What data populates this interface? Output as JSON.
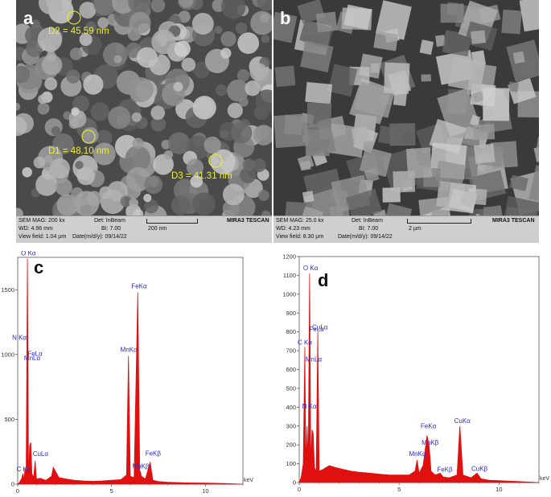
{
  "panels": {
    "a": {
      "letter": "a",
      "measurements": [
        "D2 = 45.59 nm",
        "D1 = 48.10 nm",
        "D3 = 41.31 nm"
      ],
      "infobar": {
        "sem_mag": "SEM MAG: 200 kx",
        "det": "Det: InBeam",
        "wd": "WD: 4.96 mm",
        "bi": "BI: 7.00",
        "scale": "200 nm",
        "view_field": "View field: 1.04 µm",
        "date": "Date(m/d/y): 09/14/22",
        "brand": "MIRA3 TESCAN"
      }
    },
    "b": {
      "letter": "b",
      "infobar": {
        "sem_mag": "SEM MAG: 25.0 kx",
        "det": "Det: InBeam",
        "wd": "WD: 4.23 mm",
        "bi": "BI: 7.00",
        "scale": "2 µm",
        "view_field": "View field: 8.30 µm",
        "date": "Date(m/d/y): 09/14/22",
        "brand": "MIRA3 TESCAN"
      }
    }
  },
  "chart_data": [
    {
      "type": "area",
      "panel": "c",
      "xlabel": "keV",
      "xlim": [
        0,
        12
      ],
      "ylim": [
        0,
        1750
      ],
      "x_ticks": [
        "0",
        "5",
        "10"
      ],
      "y_ticks": [
        "0",
        "500",
        "1000",
        "1500"
      ],
      "peaks": [
        {
          "label": "C Kα",
          "x": 0.28,
          "y": 80
        },
        {
          "label": "N Kα",
          "x": 0.39,
          "y": 680
        },
        {
          "label": "O Kα",
          "x": 0.52,
          "y": 1740
        },
        {
          "label": "FeLα",
          "x": 0.7,
          "y": 960
        },
        {
          "label": "MnLα",
          "x": 0.64,
          "y": 880
        },
        {
          "label": "CuLα",
          "x": 0.93,
          "y": 180
        },
        {
          "label": "MnKα",
          "x": 5.9,
          "y": 990
        },
        {
          "label": "FeKα",
          "x": 6.4,
          "y": 1480
        },
        {
          "label": "MnKβ",
          "x": 6.49,
          "y": 110
        },
        {
          "label": "FeKβ",
          "x": 7.06,
          "y": 170
        }
      ],
      "x": [
        0.0,
        0.1,
        0.2,
        0.28,
        0.33,
        0.39,
        0.45,
        0.52,
        0.58,
        0.64,
        0.7,
        0.76,
        0.85,
        0.93,
        1.0,
        1.2,
        1.5,
        1.8,
        1.9,
        2.2,
        2.6,
        3.0,
        3.5,
        4.0,
        4.5,
        5.0,
        5.5,
        5.8,
        5.9,
        6.0,
        6.2,
        6.4,
        6.5,
        6.6,
        6.8,
        7.06,
        7.2,
        7.5,
        8.0,
        9.0,
        10.0,
        11.0,
        12.0
      ],
      "y": [
        0,
        15,
        40,
        80,
        30,
        120,
        90,
        1740,
        60,
        300,
        320,
        80,
        50,
        180,
        40,
        45,
        30,
        60,
        130,
        50,
        40,
        30,
        25,
        22,
        25,
        30,
        35,
        70,
        990,
        60,
        50,
        1480,
        110,
        60,
        40,
        170,
        30,
        20,
        15,
        10,
        8,
        5,
        0
      ]
    },
    {
      "type": "area",
      "panel": "d",
      "xlabel": "keV",
      "xlim": [
        0,
        12
      ],
      "ylim": [
        0,
        1200
      ],
      "x_ticks": [
        "0",
        "5",
        "10"
      ],
      "y_ticks": [
        "0",
        "100",
        "200",
        "300",
        "400",
        "500",
        "600",
        "700",
        "800",
        "900",
        "1000",
        "1100",
        "1200"
      ],
      "peaks": [
        {
          "label": "C Kα",
          "x": 0.28,
          "y": 720
        },
        {
          "label": "N Kα",
          "x": 0.39,
          "y": 440
        },
        {
          "label": "O Kα",
          "x": 0.52,
          "y": 1110
        },
        {
          "label": "FeLα",
          "x": 0.7,
          "y": 550
        },
        {
          "label": "MnLα",
          "x": 0.64,
          "y": 490
        },
        {
          "label": "CuLα",
          "x": 0.93,
          "y": 800
        },
        {
          "label": "MnKα",
          "x": 5.9,
          "y": 120
        },
        {
          "label": "FeKα",
          "x": 6.4,
          "y": 250
        },
        {
          "label": "MnKβ",
          "x": 6.49,
          "y": 200
        },
        {
          "label": "FeKβ",
          "x": 7.06,
          "y": 50
        },
        {
          "label": "CuKα",
          "x": 8.04,
          "y": 300
        },
        {
          "label": "CuKβ",
          "x": 8.9,
          "y": 50
        }
      ],
      "x": [
        0.0,
        0.1,
        0.2,
        0.28,
        0.33,
        0.39,
        0.45,
        0.52,
        0.58,
        0.64,
        0.7,
        0.76,
        0.85,
        0.93,
        1.0,
        1.2,
        1.5,
        1.8,
        2.2,
        2.6,
        3.0,
        3.5,
        4.0,
        4.5,
        5.0,
        5.5,
        5.8,
        5.9,
        6.0,
        6.2,
        6.4,
        6.5,
        6.6,
        6.8,
        7.06,
        7.2,
        7.5,
        7.9,
        8.04,
        8.2,
        8.6,
        8.9,
        9.1,
        9.5,
        10.0,
        11.0,
        12.0
      ],
      "y": [
        0,
        30,
        100,
        720,
        90,
        300,
        120,
        1110,
        100,
        280,
        260,
        80,
        60,
        800,
        60,
        70,
        90,
        80,
        70,
        60,
        55,
        50,
        45,
        40,
        40,
        40,
        60,
        120,
        50,
        90,
        250,
        200,
        60,
        40,
        50,
        30,
        25,
        40,
        300,
        40,
        25,
        50,
        20,
        12,
        10,
        5,
        0
      ]
    }
  ]
}
